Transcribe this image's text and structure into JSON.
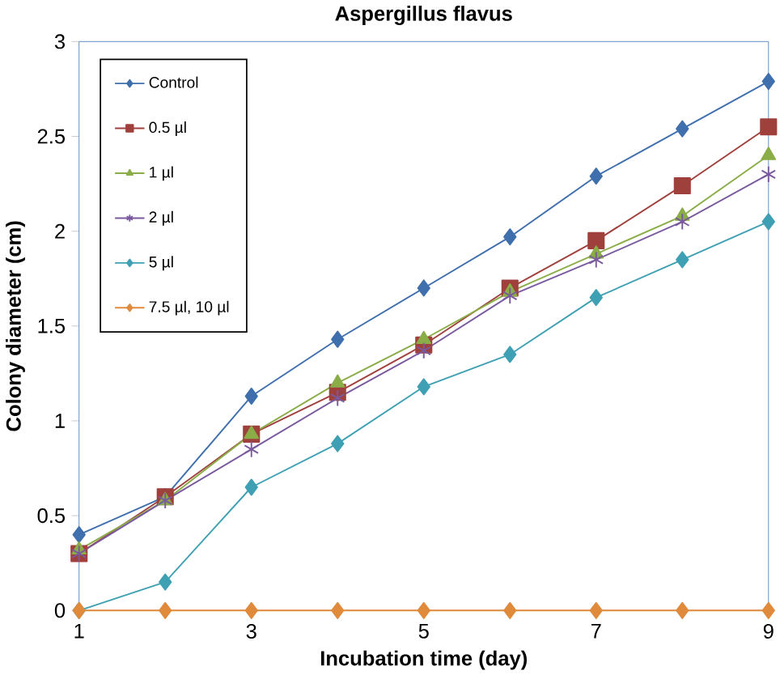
{
  "chart_data": {
    "type": "line",
    "title": "Aspergillus flavus",
    "xlabel": "Incubation time (day)",
    "ylabel": "Colony diameter (cm)",
    "x": [
      1,
      2,
      3,
      4,
      5,
      6,
      7,
      8,
      9
    ],
    "xlim": [
      1,
      9
    ],
    "xticks": [
      1,
      3,
      5,
      7,
      9
    ],
    "ylim": [
      0,
      3
    ],
    "yticks": [
      0,
      0.5,
      1,
      1.5,
      2,
      2.5,
      3
    ],
    "legend": "top left",
    "grid": false,
    "series": [
      {
        "name": "Control",
        "color": "#3f6fad",
        "marker": "diamond",
        "values": [
          0.4,
          0.6,
          1.13,
          1.43,
          1.7,
          1.97,
          2.29,
          2.54,
          2.79
        ]
      },
      {
        "name": "0.5 µl",
        "color": "#a0403c",
        "marker": "square",
        "values": [
          0.3,
          0.6,
          0.93,
          1.15,
          1.4,
          1.7,
          1.95,
          2.24,
          2.55
        ]
      },
      {
        "name": "1  µl",
        "color": "#8aad48",
        "marker": "triangle",
        "values": [
          0.32,
          0.58,
          0.93,
          1.2,
          1.43,
          1.68,
          1.88,
          2.08,
          2.4
        ]
      },
      {
        "name": "2  µl",
        "color": "#7a5a9e",
        "marker": "cross",
        "values": [
          0.3,
          0.58,
          0.85,
          1.12,
          1.37,
          1.66,
          1.85,
          2.05,
          2.3
        ]
      },
      {
        "name": "5 µl",
        "color": "#3fa0b4",
        "marker": "diamond",
        "values": [
          0,
          0.15,
          0.65,
          0.88,
          1.18,
          1.35,
          1.65,
          1.85,
          2.05
        ]
      },
      {
        "name": "7.5 µl, 10 µl",
        "color": "#e08a3c",
        "marker": "diamond",
        "values": [
          0,
          0,
          0,
          0,
          0,
          0,
          0,
          0,
          0
        ]
      }
    ]
  }
}
